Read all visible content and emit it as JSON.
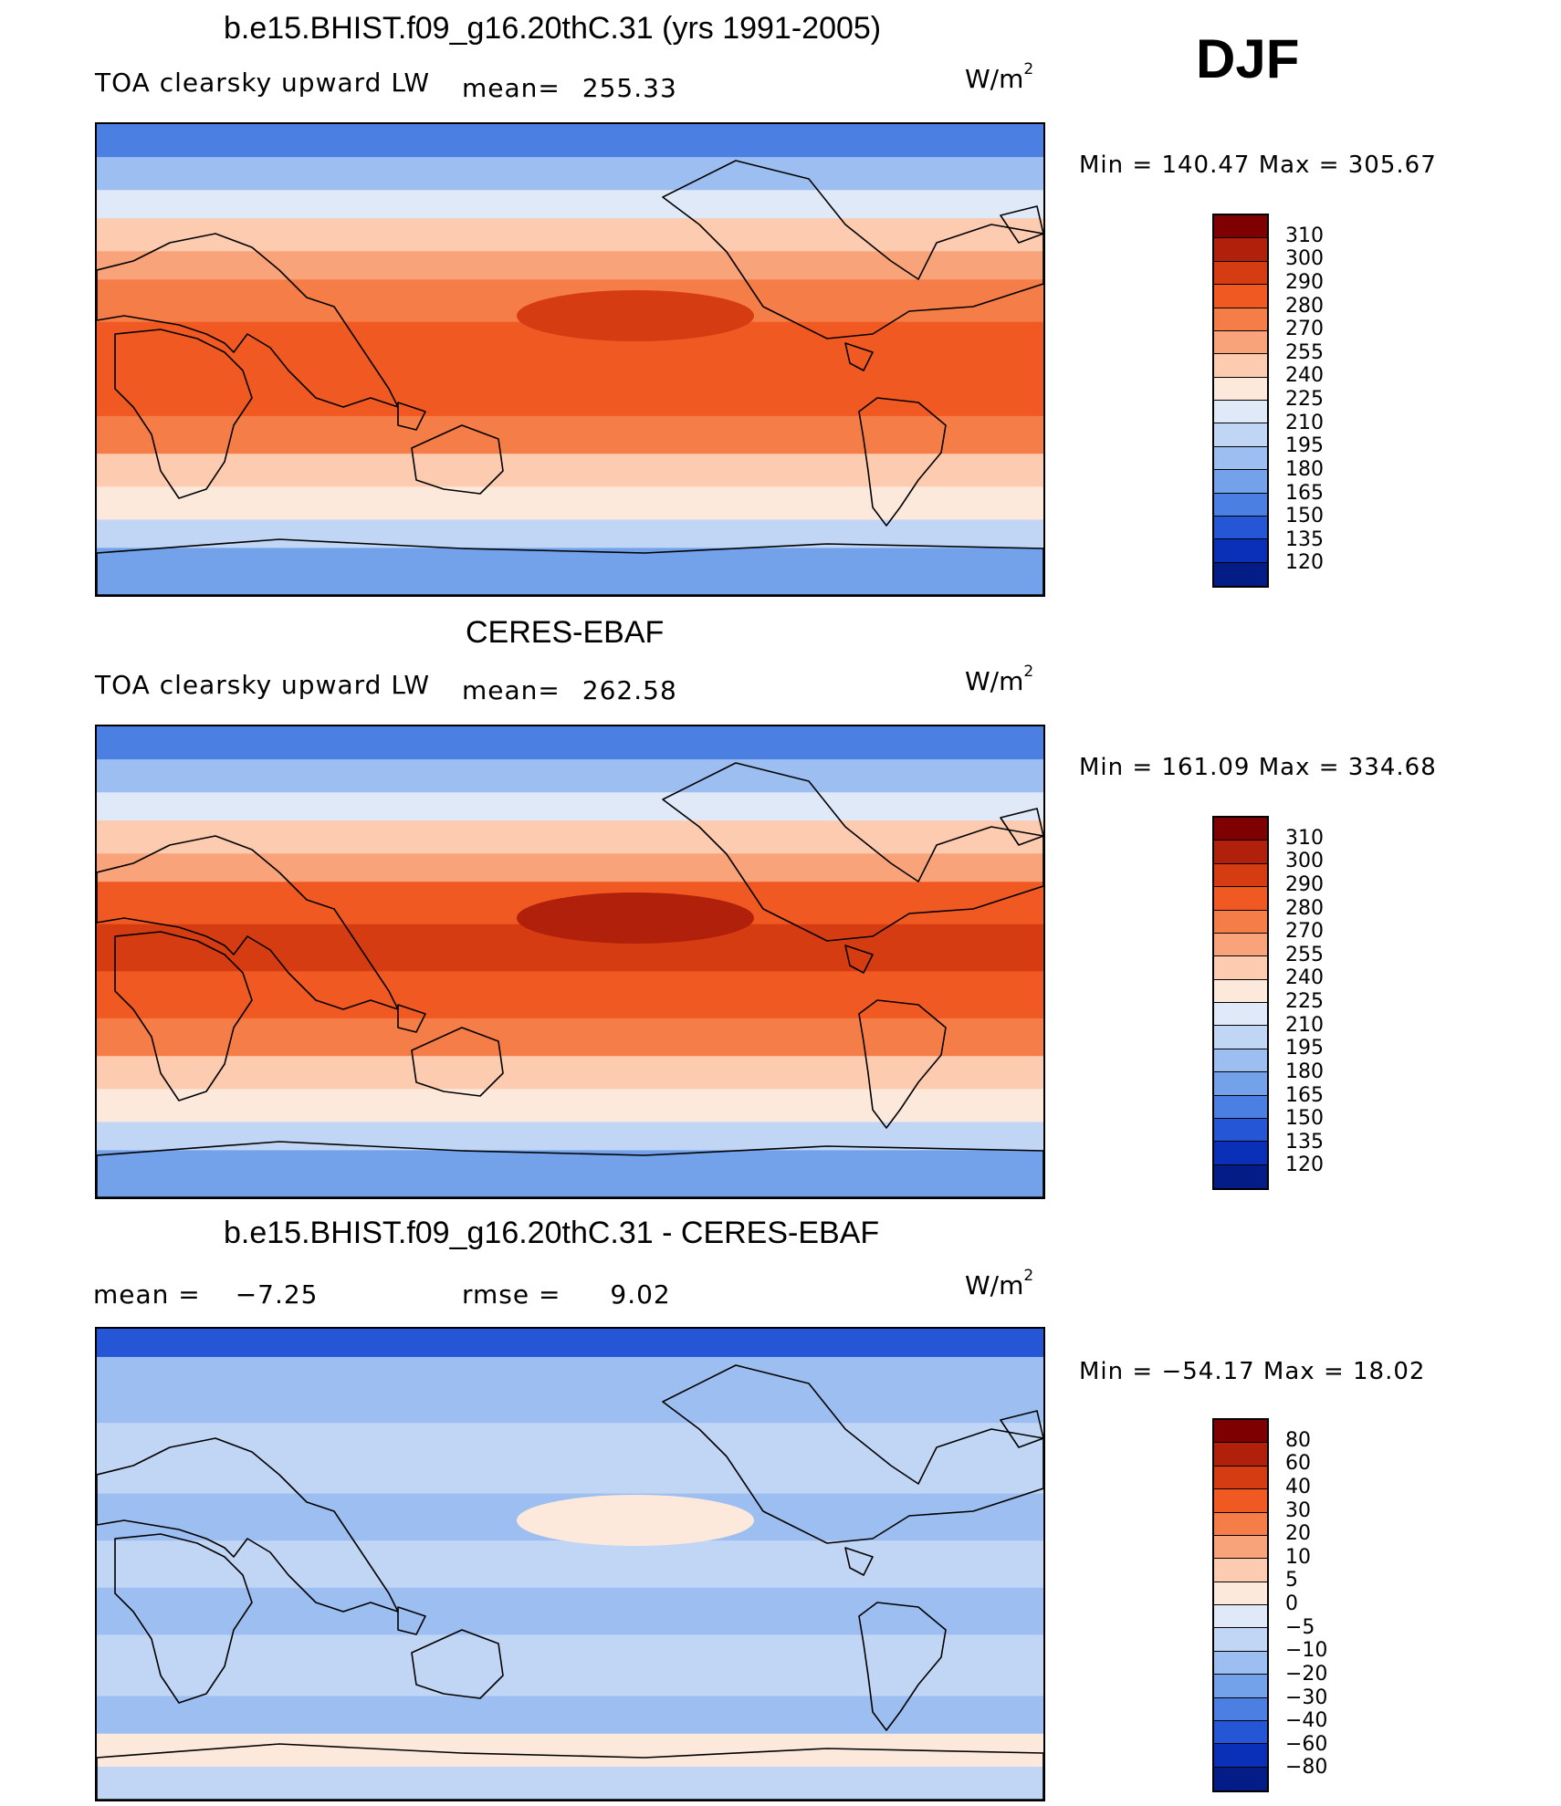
{
  "season": "DJF",
  "panels": [
    {
      "title": "b.e15.BHIST.f09_g16.20thC.31 (yrs 1991-2005)",
      "left_label": "TOA clearsky upward LW",
      "stat_label": "mean=",
      "stat_value": "255.33",
      "units_base": "W/m",
      "units_sup": "2",
      "minmax_label": "Min  =  140.47  Max  =  305.67",
      "colorbar": {
        "labels": [
          "310",
          "300",
          "290",
          "280",
          "270",
          "255",
          "240",
          "225",
          "210",
          "195",
          "180",
          "165",
          "150",
          "135",
          "120"
        ],
        "colors": [
          "#7f0000",
          "#b0200a",
          "#d63c12",
          "#f05a22",
          "#f57d48",
          "#f9a37a",
          "#fccbb0",
          "#fde9dc",
          "#dfe9f8",
          "#c1d6f5",
          "#9cbef0",
          "#73a1ea",
          "#4b7fe2",
          "#2456d6",
          "#0a2fb8",
          "#041c86"
        ]
      },
      "map_style": "absolute"
    },
    {
      "title": "CERES-EBAF",
      "left_label": "TOA clearsky upward LW",
      "stat_label": "mean=",
      "stat_value": "262.58",
      "units_base": "W/m",
      "units_sup": "2",
      "minmax_label": "Min  =  161.09  Max  =  334.68",
      "colorbar": {
        "labels": [
          "310",
          "300",
          "290",
          "280",
          "270",
          "255",
          "240",
          "225",
          "210",
          "195",
          "180",
          "165",
          "150",
          "135",
          "120"
        ],
        "colors": [
          "#7f0000",
          "#b0200a",
          "#d63c12",
          "#f05a22",
          "#f57d48",
          "#f9a37a",
          "#fccbb0",
          "#fde9dc",
          "#dfe9f8",
          "#c1d6f5",
          "#9cbef0",
          "#73a1ea",
          "#4b7fe2",
          "#2456d6",
          "#0a2fb8",
          "#041c86"
        ]
      },
      "map_style": "absolute"
    },
    {
      "title": "b.e15.BHIST.f09_g16.20thC.31 - CERES-EBAF",
      "left_label": "mean =",
      "left_value": "−7.25",
      "stat_label": "rmse =",
      "stat_value": "9.02",
      "units_base": "W/m",
      "units_sup": "2",
      "minmax_label": "Min  =  −54.17  Max  =    18.02",
      "colorbar": {
        "labels": [
          "80",
          "60",
          "40",
          "30",
          "20",
          "10",
          "5",
          "0",
          "−5",
          "−10",
          "−20",
          "−30",
          "−40",
          "−60",
          "−80"
        ],
        "colors": [
          "#7f0000",
          "#b0200a",
          "#d63c12",
          "#f05a22",
          "#f57d48",
          "#f9a37a",
          "#fccbb0",
          "#fde9dc",
          "#dfe9f8",
          "#c1d6f5",
          "#9cbef0",
          "#73a1ea",
          "#4b7fe2",
          "#2456d6",
          "#0a2fb8",
          "#041c86"
        ]
      },
      "map_style": "difference"
    }
  ]
}
